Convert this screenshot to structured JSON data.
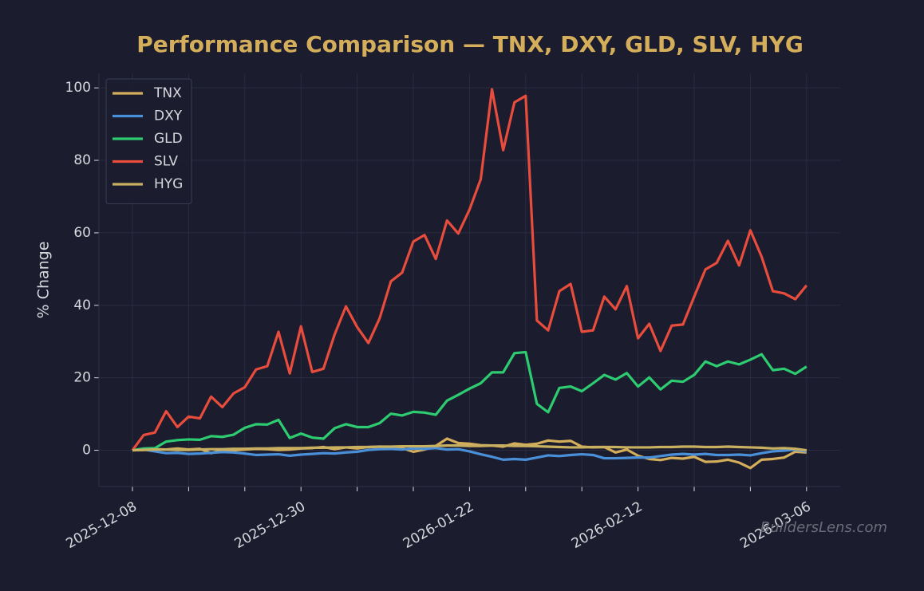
{
  "chart_data": {
    "type": "line",
    "title": "Performance Comparison — TNX, DXY, GLD, SLV, HYG",
    "y_label": "% Change",
    "watermark": "BuildersLens.com",
    "categories": [
      "2025-12-08",
      null,
      null,
      null,
      null,
      null,
      null,
      null,
      null,
      null,
      null,
      null,
      null,
      null,
      null,
      "2025-12-30",
      null,
      null,
      null,
      null,
      null,
      null,
      null,
      null,
      null,
      null,
      null,
      null,
      null,
      null,
      "2026-01-22",
      null,
      null,
      null,
      null,
      null,
      null,
      null,
      null,
      null,
      null,
      null,
      null,
      null,
      null,
      "2026-02-12",
      null,
      null,
      null,
      null,
      null,
      null,
      null,
      null,
      null,
      null,
      null,
      null,
      null,
      null,
      "2026-03-06"
    ],
    "ylim": [
      -10,
      104
    ],
    "yticks": [
      0,
      20,
      40,
      60,
      80,
      100
    ],
    "grid": true,
    "legend": "upper left",
    "series": [
      {
        "name": "TNX",
        "color": "#d4ae5a",
        "values": [
          0,
          0.1,
          0.3,
          0.2,
          0.5,
          0.2,
          0.4,
          -0.8,
          0.1,
          0.0,
          0.2,
          0.4,
          0.3,
          0.1,
          0.2,
          0.5,
          0.6,
          0.9,
          0.3,
          0.8,
          0.5,
          0.9,
          1.0,
          0.8,
          0.6,
          -0.4,
          0.2,
          1.2,
          3.2,
          2.0,
          1.8,
          1.4,
          1.3,
          1.0,
          1.9,
          1.5,
          1.8,
          2.7,
          2.4,
          2.6,
          1.0,
          0.8,
          0.9,
          -0.6,
          0.2,
          -1.5,
          -2.4,
          -2.7,
          -2.1,
          -2.3,
          -1.8,
          -3.2,
          -3.1,
          -2.6,
          -3.4,
          -4.9,
          -2.6,
          -2.4,
          -2.0,
          -0.4,
          -0.6
        ]
      },
      {
        "name": "DXY",
        "color": "#4a90d9",
        "values": [
          0,
          0.2,
          -0.3,
          -0.8,
          -0.7,
          -1.0,
          -0.9,
          -0.7,
          -0.5,
          -0.6,
          -0.9,
          -1.3,
          -1.2,
          -1.1,
          -1.5,
          -1.2,
          -1.0,
          -0.8,
          -0.9,
          -0.6,
          -0.4,
          0.1,
          0.3,
          0.4,
          0.2,
          0.5,
          0.4,
          0.6,
          0.2,
          0.3,
          -0.3,
          -1.1,
          -1.8,
          -2.6,
          -2.4,
          -2.6,
          -2.0,
          -1.4,
          -1.6,
          -1.3,
          -1.1,
          -1.3,
          -2.2,
          -2.2,
          -2.1,
          -2.0,
          -2.0,
          -1.6,
          -1.2,
          -1.0,
          -1.2,
          -1.0,
          -1.3,
          -1.3,
          -1.2,
          -1.4,
          -0.8,
          -0.3,
          -0.1,
          0.2,
          -0.3
        ]
      },
      {
        "name": "GLD",
        "color": "#2ecc71",
        "values": [
          0,
          0.5,
          0.6,
          2.4,
          2.8,
          3.0,
          2.9,
          3.9,
          3.7,
          4.3,
          6.2,
          7.2,
          7.1,
          8.4,
          3.4,
          4.6,
          3.5,
          3.2,
          6.1,
          7.2,
          6.4,
          6.4,
          7.5,
          10.1,
          9.6,
          10.6,
          10.4,
          9.8,
          13.7,
          15.3,
          17.0,
          18.5,
          21.5,
          21.5,
          26.8,
          27.1,
          12.8,
          10.5,
          17.2,
          17.6,
          16.3,
          18.5,
          20.8,
          19.5,
          21.3,
          17.6,
          20.1,
          16.8,
          19.2,
          18.9,
          20.8,
          24.5,
          23.2,
          24.5,
          23.7,
          25.0,
          26.5,
          22.1,
          22.5,
          21.1,
          23.1
        ]
      },
      {
        "name": "SLV",
        "color": "#e74c3c",
        "values": [
          0,
          4.2,
          4.9,
          10.8,
          6.4,
          9.3,
          8.8,
          14.8,
          11.9,
          15.7,
          17.4,
          22.3,
          23.2,
          32.7,
          21.2,
          34.2,
          21.6,
          22.5,
          32.0,
          39.7,
          34.0,
          29.6,
          36.4,
          46.6,
          49.0,
          57.6,
          59.4,
          52.8,
          63.4,
          59.8,
          66.4,
          74.8,
          99.6,
          82.8,
          96.0,
          97.8,
          35.8,
          33.1,
          43.9,
          45.9,
          32.7,
          33.1,
          42.4,
          38.9,
          45.3,
          30.9,
          34.9,
          27.4,
          34.4,
          34.7,
          42.4,
          49.9,
          51.7,
          57.8,
          51.0,
          60.7,
          53.4,
          43.9,
          43.3,
          41.7,
          45.5
        ]
      },
      {
        "name": "HYG",
        "color": "#c9b060",
        "values": [
          0,
          0.1,
          0.2,
          0.2,
          0.1,
          0.1,
          0.2,
          0.3,
          0.3,
          0.4,
          0.4,
          0.5,
          0.5,
          0.6,
          0.6,
          0.6,
          0.7,
          0.7,
          0.8,
          0.8,
          0.9,
          0.9,
          1.0,
          1.0,
          1.1,
          1.1,
          1.1,
          1.2,
          1.3,
          1.3,
          1.2,
          1.2,
          1.3,
          1.3,
          1.2,
          1.2,
          1.1,
          1.0,
          0.9,
          0.8,
          0.8,
          0.9,
          0.9,
          0.9,
          0.8,
          0.8,
          0.8,
          0.9,
          0.9,
          1.0,
          1.0,
          0.9,
          0.9,
          1.0,
          0.9,
          0.8,
          0.7,
          0.5,
          0.6,
          0.4,
          0.0
        ]
      }
    ]
  }
}
